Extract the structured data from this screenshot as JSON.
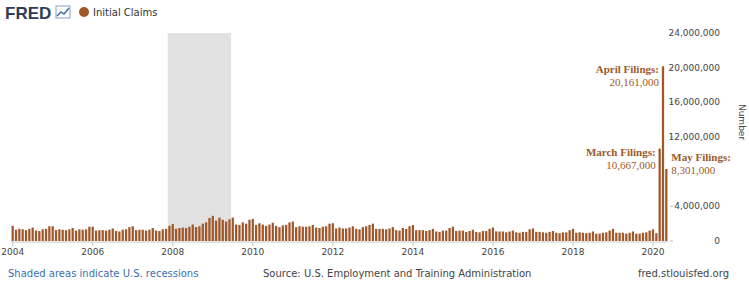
{
  "chart_data": {
    "type": "bar",
    "logo": "FRED",
    "note": "Shaded areas indicate U.S. recessions",
    "source": "Source: U.S. Employment and Training Administration",
    "url": "fred.stlouisfed.org",
    "y_label": "Number",
    "grid": false,
    "legend": "top-left",
    "recessions": [
      {
        "start": 47,
        "end": 65
      }
    ],
    "ylim": [
      0,
      24000000
    ],
    "yticks": [
      0,
      {
        "value": 4000000,
        "label": "4,000,000"
      },
      {
        "value": 12000000,
        "label": "12,000,000"
      },
      {
        "value": 16000000,
        "label": "16,000,000"
      },
      {
        "value": 20000000,
        "label": "20,000,000"
      },
      {
        "value": 24000000,
        "label": "24,000,000"
      }
    ],
    "categories": [
      "2004",
      null,
      null,
      null,
      null,
      null,
      null,
      null,
      null,
      null,
      null,
      null,
      null,
      null,
      null,
      null,
      null,
      null,
      null,
      null,
      null,
      null,
      null,
      null,
      "2006",
      null,
      null,
      null,
      null,
      null,
      null,
      null,
      null,
      null,
      null,
      null,
      null,
      null,
      null,
      null,
      null,
      null,
      null,
      null,
      null,
      null,
      null,
      null,
      "2008",
      null,
      null,
      null,
      null,
      null,
      null,
      null,
      null,
      null,
      null,
      null,
      null,
      null,
      null,
      null,
      null,
      null,
      null,
      null,
      null,
      null,
      null,
      null,
      "2010",
      null,
      null,
      null,
      null,
      null,
      null,
      null,
      null,
      null,
      null,
      null,
      null,
      null,
      null,
      null,
      null,
      null,
      null,
      null,
      null,
      null,
      null,
      null,
      "2012",
      null,
      null,
      null,
      null,
      null,
      null,
      null,
      null,
      null,
      null,
      null,
      null,
      null,
      null,
      null,
      null,
      null,
      null,
      null,
      null,
      null,
      null,
      null,
      "2014",
      null,
      null,
      null,
      null,
      null,
      null,
      null,
      null,
      null,
      null,
      null,
      null,
      null,
      null,
      null,
      null,
      null,
      null,
      null,
      null,
      null,
      null,
      null,
      "2016",
      null,
      null,
      null,
      null,
      null,
      null,
      null,
      null,
      null,
      null,
      null,
      null,
      null,
      null,
      null,
      null,
      null,
      null,
      null,
      null,
      null,
      null,
      null,
      "2018",
      null,
      null,
      null,
      null,
      null,
      null,
      null,
      null,
      null,
      null,
      null,
      null,
      null,
      null,
      null,
      null,
      null,
      null,
      null,
      null,
      null,
      null,
      null,
      "2020",
      null,
      null,
      null,
      null
    ],
    "series": [
      {
        "name": "Initial Claims",
        "color": "#a0582a",
        "values": [
          1750000,
          1300000,
          1400000,
          1350000,
          1250000,
          1400000,
          1550000,
          1200000,
          1150000,
          1350000,
          1400000,
          1700000,
          1700000,
          1250000,
          1350000,
          1300000,
          1250000,
          1350000,
          1500000,
          1200000,
          1350000,
          1300000,
          1350000,
          1650000,
          1650000,
          1200000,
          1250000,
          1250000,
          1200000,
          1300000,
          1450000,
          1150000,
          1100000,
          1300000,
          1350000,
          1600000,
          1700000,
          1250000,
          1300000,
          1300000,
          1200000,
          1300000,
          1500000,
          1200000,
          1150000,
          1350000,
          1400000,
          1750000,
          1950000,
          1400000,
          1500000,
          1550000,
          1500000,
          1650000,
          1900000,
          1600000,
          1700000,
          2000000,
          2150000,
          2650000,
          2900000,
          2350000,
          2700000,
          2450000,
          2250000,
          2500000,
          2700000,
          1900000,
          1850000,
          2150000,
          2000000,
          2450000,
          2550000,
          1850000,
          2050000,
          1900000,
          1750000,
          1900000,
          2100000,
          1750000,
          1600000,
          1800000,
          1850000,
          2150000,
          2250000,
          1600000,
          1700000,
          1650000,
          1650000,
          1700000,
          1850000,
          1550000,
          1500000,
          1650000,
          1700000,
          2000000,
          2050000,
          1450000,
          1550000,
          1450000,
          1450000,
          1550000,
          1700000,
          1400000,
          1350000,
          1600000,
          1700000,
          1850000,
          2000000,
          1400000,
          1400000,
          1400000,
          1350000,
          1450000,
          1600000,
          1250000,
          1200000,
          1500000,
          1400000,
          1700000,
          1850000,
          1250000,
          1250000,
          1250000,
          1150000,
          1250000,
          1400000,
          1100000,
          1050000,
          1200000,
          1200000,
          1500000,
          1650000,
          1150000,
          1200000,
          1200000,
          1050000,
          1150000,
          1300000,
          1050000,
          1000000,
          1150000,
          1150000,
          1400000,
          1550000,
          1100000,
          1100000,
          1100000,
          1000000,
          1100000,
          1200000,
          1000000,
          950000,
          1050000,
          1050000,
          1350000,
          1450000,
          1050000,
          1050000,
          1000000,
          950000,
          1050000,
          1150000,
          950000,
          900000,
          1000000,
          1000000,
          1250000,
          1400000,
          950000,
          1000000,
          950000,
          900000,
          950000,
          1100000,
          850000,
          850000,
          950000,
          1000000,
          1200000,
          1400000,
          950000,
          950000,
          950000,
          850000,
          950000,
          1100000,
          850000,
          850000,
          950000,
          1000000,
          1200000,
          1350000,
          900000,
          10667000,
          20161000,
          8301000
        ],
        "value_labels": [
          null,
          null,
          null,
          null,
          null,
          null,
          null,
          null,
          null,
          null,
          null,
          null,
          null,
          null,
          null,
          null,
          null,
          null,
          null,
          null,
          null,
          null,
          null,
          null,
          null,
          null,
          null,
          null,
          null,
          null,
          null,
          null,
          null,
          null,
          null,
          null,
          null,
          null,
          null,
          null,
          null,
          null,
          null,
          null,
          null,
          null,
          null,
          null,
          null,
          null,
          null,
          null,
          null,
          null,
          null,
          null,
          null,
          null,
          null,
          null,
          null,
          null,
          null,
          null,
          null,
          null,
          null,
          null,
          null,
          null,
          null,
          null,
          null,
          null,
          null,
          null,
          null,
          null,
          null,
          null,
          null,
          null,
          null,
          null,
          null,
          null,
          null,
          null,
          null,
          null,
          null,
          null,
          null,
          null,
          null,
          null,
          null,
          null,
          null,
          null,
          null,
          null,
          null,
          null,
          null,
          null,
          null,
          null,
          null,
          null,
          null,
          null,
          null,
          null,
          null,
          null,
          null,
          null,
          null,
          null,
          null,
          null,
          null,
          null,
          null,
          null,
          null,
          null,
          null,
          null,
          null,
          null,
          null,
          null,
          null,
          null,
          null,
          null,
          null,
          null,
          null,
          null,
          null,
          null,
          null,
          null,
          null,
          null,
          null,
          null,
          null,
          null,
          null,
          null,
          null,
          null,
          null,
          null,
          null,
          null,
          null,
          null,
          null,
          null,
          null,
          null,
          null,
          null,
          null,
          null,
          null,
          null,
          null,
          null,
          null,
          null,
          null,
          null,
          null,
          null,
          null,
          null,
          null,
          null,
          null,
          null,
          null,
          null,
          null,
          null,
          null,
          null,
          null,
          null,
          "10,667,000",
          "20,161,000",
          "8,301,000"
        ],
        "annotations": [
          null,
          null,
          null,
          null,
          null,
          null,
          null,
          null,
          null,
          null,
          null,
          null,
          null,
          null,
          null,
          null,
          null,
          null,
          null,
          null,
          null,
          null,
          null,
          null,
          null,
          null,
          null,
          null,
          null,
          null,
          null,
          null,
          null,
          null,
          null,
          null,
          null,
          null,
          null,
          null,
          null,
          null,
          null,
          null,
          null,
          null,
          null,
          null,
          null,
          null,
          null,
          null,
          null,
          null,
          null,
          null,
          null,
          null,
          null,
          null,
          null,
          null,
          null,
          null,
          null,
          null,
          null,
          null,
          null,
          null,
          null,
          null,
          null,
          null,
          null,
          null,
          null,
          null,
          null,
          null,
          null,
          null,
          null,
          null,
          null,
          null,
          null,
          null,
          null,
          null,
          null,
          null,
          null,
          null,
          null,
          null,
          null,
          null,
          null,
          null,
          null,
          null,
          null,
          null,
          null,
          null,
          null,
          null,
          null,
          null,
          null,
          null,
          null,
          null,
          null,
          null,
          null,
          null,
          null,
          null,
          null,
          null,
          null,
          null,
          null,
          null,
          null,
          null,
          null,
          null,
          null,
          null,
          null,
          null,
          null,
          null,
          null,
          null,
          null,
          null,
          null,
          null,
          null,
          null,
          null,
          null,
          null,
          null,
          null,
          null,
          null,
          null,
          null,
          null,
          null,
          null,
          null,
          null,
          null,
          null,
          null,
          null,
          null,
          null,
          null,
          null,
          null,
          null,
          null,
          null,
          null,
          null,
          null,
          null,
          null,
          null,
          null,
          null,
          null,
          null,
          null,
          null,
          null,
          null,
          null,
          null,
          null,
          null,
          null,
          null,
          null,
          null,
          null,
          null,
          "March Filings:",
          "April Filings:",
          "May Filings:"
        ]
      }
    ]
  }
}
